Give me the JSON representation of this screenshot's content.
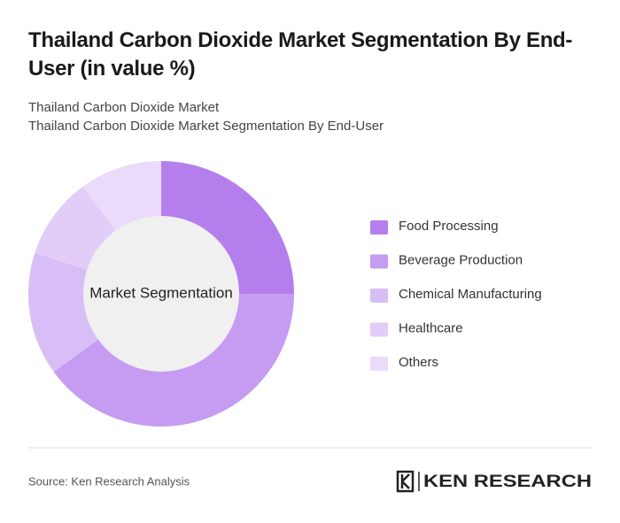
{
  "title": "Thailand Carbon Dioxide Market Segmentation By End-User (in value %)",
  "subtitle_lines": [
    "Thailand Carbon Dioxide Market",
    "Thailand Carbon Dioxide Market Segmentation By End-User"
  ],
  "chart_data": {
    "type": "donut",
    "center_label": "Market Segmentation",
    "categories": [
      "Food Processing",
      "Beverage Production",
      "Chemical Manufacturing",
      "Healthcare",
      "Others"
    ],
    "values": [
      25,
      40,
      15,
      10,
      10
    ],
    "colors": [
      "#b47fec",
      "#c59cf1",
      "#d8bef6",
      "#e1cdf8",
      "#eadbfa"
    ]
  },
  "source": "Source: Ken Research Analysis",
  "logo": "KEN RESEARCH"
}
